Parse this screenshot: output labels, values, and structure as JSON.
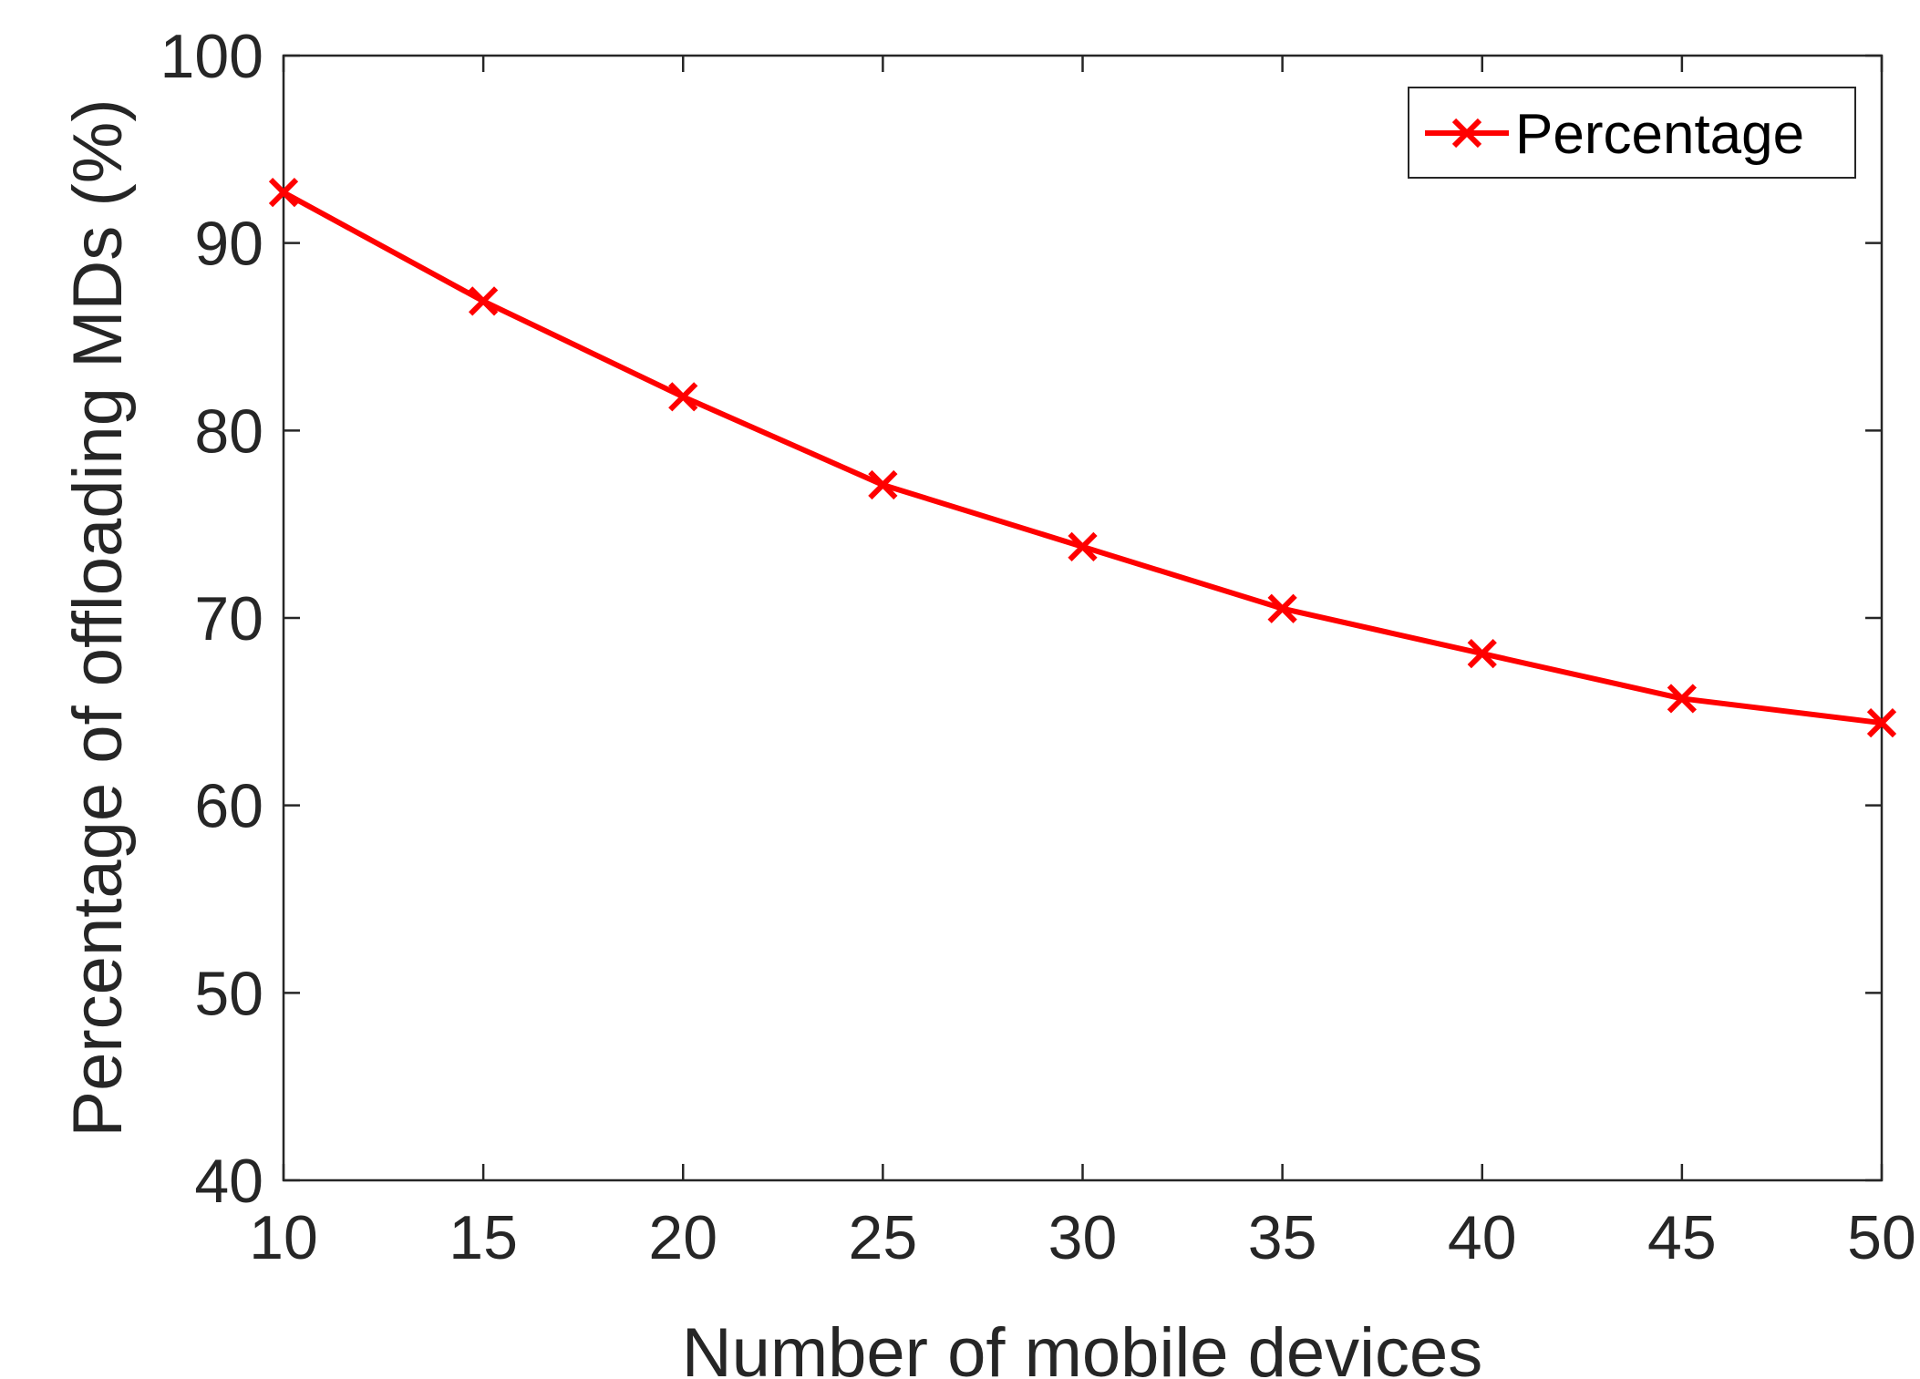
{
  "chart_data": {
    "type": "line",
    "xlabel": "Number of mobile devices",
    "ylabel": "Percentage of offloading MDs (%)",
    "x": [
      10,
      15,
      20,
      25,
      30,
      35,
      40,
      45,
      50
    ],
    "series": [
      {
        "name": "Percentage",
        "values": [
          92.7,
          86.9,
          81.8,
          77.1,
          73.8,
          70.5,
          68.1,
          65.7,
          64.4
        ],
        "color": "#ff0000",
        "marker": "x"
      }
    ],
    "xlim": [
      10,
      50
    ],
    "ylim": [
      40,
      100
    ],
    "xticks": [
      10,
      15,
      20,
      25,
      30,
      35,
      40,
      45,
      50
    ],
    "yticks": [
      40,
      50,
      60,
      70,
      80,
      90,
      100
    ],
    "grid": false,
    "legend_position": "top-right"
  }
}
